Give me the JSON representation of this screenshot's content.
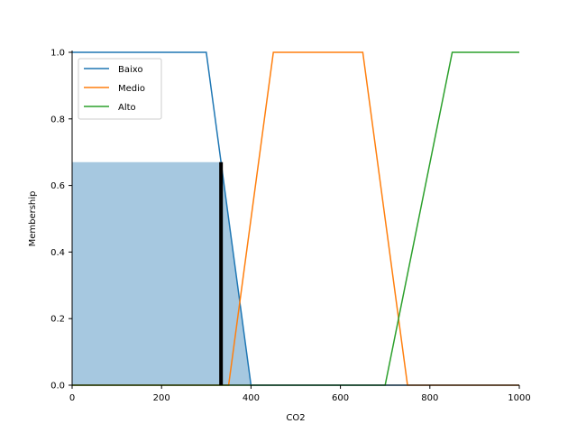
{
  "chart_data": {
    "type": "line",
    "title": "",
    "xlabel": "CO2",
    "ylabel": "Membership",
    "xlim": [
      0,
      1000
    ],
    "ylim": [
      0,
      1.0
    ],
    "xticks": [
      0,
      200,
      400,
      600,
      800,
      1000
    ],
    "yticks": [
      0.0,
      0.2,
      0.4,
      0.6,
      0.8,
      1.0
    ],
    "grid": false,
    "legend_position": "top-left",
    "series": [
      {
        "name": "Baixo",
        "color": "#1f77b4",
        "points": [
          [
            0,
            1
          ],
          [
            300,
            1
          ],
          [
            400,
            0
          ],
          [
            1000,
            0
          ]
        ]
      },
      {
        "name": "Medio",
        "color": "#ff7f0e",
        "points": [
          [
            0,
            0
          ],
          [
            350,
            0
          ],
          [
            450,
            1
          ],
          [
            650,
            1
          ],
          [
            750,
            0
          ],
          [
            1000,
            0
          ]
        ]
      },
      {
        "name": "Alto",
        "color": "#2ca02c",
        "points": [
          [
            0,
            0
          ],
          [
            700,
            0
          ],
          [
            850,
            1
          ],
          [
            1000,
            1
          ]
        ]
      }
    ],
    "activation": {
      "fill_color": "#a6c8e0",
      "fill_points": [
        [
          0,
          0
        ],
        [
          0,
          0.67
        ],
        [
          333,
          0.67
        ],
        [
          400,
          0
        ],
        [
          0,
          0
        ]
      ],
      "input_line": {
        "x": 333,
        "y": 0.67,
        "color": "#000000"
      }
    }
  }
}
